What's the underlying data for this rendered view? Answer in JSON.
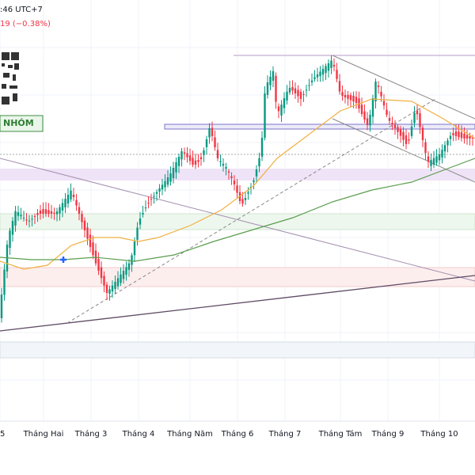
{
  "header": {
    "time": ":46 UTC+7",
    "change": "19 (−0.38%)"
  },
  "badge": "NHÓM",
  "x_axis": {
    "labels": [
      "5",
      "Tháng Hai",
      "Tháng 3",
      "Tháng 4",
      "Tháng Năm",
      "Tháng 6",
      "Tháng 7",
      "Tháng Tám",
      "Tháng 9",
      "Tháng 10"
    ]
  }
}
